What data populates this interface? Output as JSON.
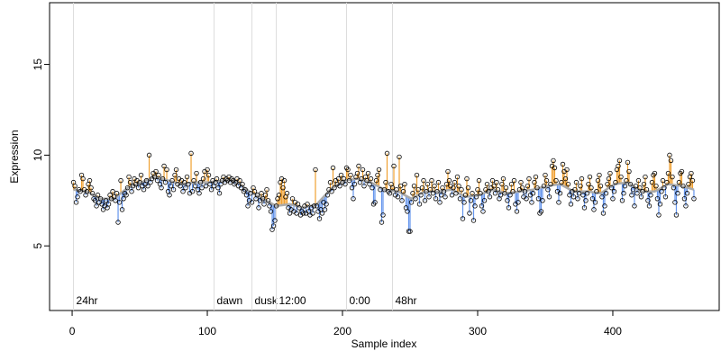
{
  "chart_data": {
    "type": "scatter",
    "x_label": "Sample index",
    "y_label": "Expression",
    "xlim": [
      -16.7,
      478.7
    ],
    "ylim": [
      1.44,
      18.4
    ],
    "xticks": [
      0,
      100,
      200,
      300,
      400
    ],
    "yticks": [
      5,
      10,
      15
    ],
    "above_color": "#f0a030",
    "below_color": "#6495ed",
    "point_color": "#000000",
    "event_line_color": "#dddddd",
    "event_label_color": "#aaaaaa",
    "events": [
      {
        "x": 1,
        "label": "24hr"
      },
      {
        "x": 105,
        "label": "dawn"
      },
      {
        "x": 133,
        "label": "dusk"
      },
      {
        "x": 151,
        "label": "12:00"
      },
      {
        "x": 203,
        "label": "0:00"
      },
      {
        "x": 237,
        "label": "48hr"
      }
    ],
    "series": [
      {
        "color": "#000000",
        "x": [
          1,
          2,
          3,
          4,
          5,
          6,
          7,
          8,
          9,
          10,
          11,
          12,
          13,
          14,
          15,
          16,
          17,
          18,
          19,
          20,
          21,
          22,
          23,
          24,
          25,
          26,
          27,
          28,
          29,
          30,
          31,
          32,
          33,
          34,
          35,
          36,
          37,
          38,
          39,
          40,
          41,
          42,
          43,
          44,
          45,
          46,
          47,
          48,
          49,
          50,
          51,
          52,
          53,
          54,
          55,
          56,
          57,
          58,
          59,
          60,
          61,
          62,
          63,
          64,
          65,
          66,
          67,
          68,
          69,
          70,
          71,
          72,
          73,
          74,
          75,
          76,
          77,
          78,
          79,
          80,
          81,
          82,
          83,
          84,
          85,
          86,
          87,
          88,
          89,
          90,
          91,
          92,
          93,
          94,
          95,
          96,
          97,
          98,
          99,
          100,
          101,
          102,
          103,
          104,
          105,
          106,
          107,
          108,
          109,
          110,
          111,
          112,
          113,
          114,
          115,
          116,
          117,
          118,
          119,
          120,
          121,
          122,
          123,
          124,
          125,
          126,
          127,
          128,
          129,
          130,
          131,
          132,
          133,
          134,
          135,
          136,
          137,
          138,
          139,
          140,
          141,
          142,
          143,
          144,
          145,
          146,
          147,
          148,
          149,
          150,
          151,
          152,
          153,
          154,
          155,
          156,
          157,
          158,
          159,
          160,
          161,
          162,
          163,
          164,
          165,
          166,
          167,
          168,
          169,
          170,
          171,
          172,
          173,
          174,
          175,
          176,
          177,
          178,
          179,
          180,
          181,
          182,
          183,
          184,
          185,
          186,
          187,
          188,
          189,
          190,
          191,
          192,
          193,
          194,
          195,
          196,
          197,
          198,
          199,
          200,
          201,
          202,
          203,
          204,
          205,
          206,
          207,
          208,
          209,
          210,
          211,
          212,
          213,
          214,
          215,
          216,
          217,
          218,
          219,
          220,
          221,
          222,
          223,
          224,
          225,
          226,
          227,
          228,
          229,
          230,
          231,
          232,
          233,
          234,
          235,
          236,
          237,
          238,
          239,
          240,
          241,
          242,
          243,
          244,
          245,
          246,
          247,
          248,
          249,
          250,
          251,
          252,
          253,
          254,
          255,
          256,
          257,
          258,
          259,
          260,
          261,
          262,
          263,
          264,
          265,
          266,
          267,
          268,
          269,
          270,
          271,
          272,
          273,
          274,
          275,
          276,
          277,
          278,
          279,
          280,
          281,
          282,
          283,
          284,
          285,
          286,
          287,
          288,
          289,
          290,
          291,
          292,
          293,
          294,
          295,
          296,
          297,
          298,
          299,
          300,
          301,
          302,
          303,
          304,
          305,
          306,
          307,
          308,
          309,
          310,
          311,
          312,
          313,
          314,
          315,
          316,
          317,
          318,
          319,
          320,
          321,
          322,
          323,
          324,
          325,
          326,
          327,
          328,
          329,
          330,
          331,
          332,
          333,
          334,
          335,
          336,
          337,
          338,
          339,
          340,
          341,
          342,
          343,
          344,
          345,
          346,
          347,
          348,
          349,
          350,
          351,
          352,
          353,
          354,
          355,
          356,
          357,
          358,
          359,
          360,
          361,
          362,
          363,
          364,
          365,
          366,
          367,
          368,
          369,
          370,
          371,
          372,
          373,
          374,
          375,
          376,
          377,
          378,
          379,
          380,
          381,
          382,
          383,
          384,
          385,
          386,
          387,
          388,
          389,
          390,
          391,
          392,
          393,
          394,
          395,
          396,
          397,
          398,
          399,
          400,
          401,
          402,
          403,
          404,
          405,
          406,
          407,
          408,
          409,
          410,
          411,
          412,
          413,
          414,
          415,
          416,
          417,
          418,
          419,
          420,
          421,
          422,
          423,
          424,
          425,
          426,
          427,
          428,
          429,
          430,
          431,
          432,
          433,
          434,
          435,
          436,
          437,
          438,
          439,
          440,
          441,
          442,
          443,
          444,
          445,
          446,
          447,
          448,
          449,
          450,
          451,
          452,
          453,
          454,
          455,
          456,
          457,
          458,
          459,
          460
        ],
        "values": [
          8.5,
          8.3,
          7.4,
          7.7,
          8.1,
          8.0,
          8.9,
          8.7,
          8.1,
          7.8,
          8.0,
          8.4,
          8.6,
          8.2,
          7.9,
          7.6,
          7.5,
          7.2,
          7.8,
          7.4,
          7.6,
          7.3,
          7.0,
          7.2,
          7.5,
          7.1,
          7.3,
          7.8,
          7.6,
          8.0,
          7.7,
          7.5,
          7.9,
          6.3,
          7.4,
          8.6,
          7.0,
          7.6,
          7.9,
          7.8,
          8.2,
          8.8,
          8.5,
          8.0,
          8.3,
          8.7,
          8.4,
          8.6,
          8.2,
          8.5,
          8.9,
          8.3,
          8.1,
          8.4,
          8.6,
          8.3,
          10.0,
          8.5,
          8.7,
          9.0,
          8.8,
          9.1,
          8.6,
          8.9,
          8.4,
          8.2,
          8.7,
          9.4,
          8.5,
          9.2,
          8.0,
          7.8,
          8.3,
          8.6,
          8.1,
          8.9,
          9.2,
          8.4,
          8.7,
          8.3,
          8.6,
          8.0,
          8.5,
          8.2,
          8.8,
          8.4,
          7.9,
          10.1,
          8.0,
          8.6,
          8.3,
          9.0,
          8.1,
          7.9,
          8.5,
          8.2,
          8.7,
          9.1,
          8.3,
          9.2,
          8.9,
          8.4,
          8.1,
          8.6,
          8.3,
          8.5,
          8.7,
          8.2,
          7.9,
          8.4,
          8.6,
          8.8,
          8.5,
          8.7,
          8.6,
          8.8,
          8.5,
          8.7,
          8.6,
          8.4,
          8.5,
          8.7,
          8.3,
          8.6,
          8.2,
          8.4,
          8.0,
          8.1,
          7.8,
          7.2,
          7.5,
          7.9,
          7.4,
          8.2,
          8.0,
          7.6,
          7.8,
          7.1,
          7.5,
          7.9,
          7.6,
          7.3,
          7.8,
          8.1,
          7.5,
          7.2,
          6.9,
          5.9,
          6.1,
          6.4,
          7.2,
          7.6,
          7.8,
          8.5,
          8.7,
          8.2,
          8.6,
          7.7,
          7.9,
          7.1,
          6.8,
          7.0,
          7.6,
          6.9,
          7.4,
          6.8,
          7.3,
          7.1,
          6.7,
          6.9,
          6.8,
          7.2,
          6.8,
          7.3,
          6.9,
          6.7,
          7.1,
          6.8,
          7.2,
          9.2,
          7.2,
          6.9,
          6.5,
          7.0,
          6.8,
          7.4,
          7.0,
          7.3,
          7.8,
          8.1,
          8.5,
          8.0,
          9.3,
          8.2,
          8.6,
          8.4,
          8.7,
          8.3,
          8.9,
          8.5,
          8.7,
          8.4,
          9.3,
          9.2,
          8.6,
          8.9,
          8.2,
          7.6,
          8.4,
          8.8,
          9.0,
          9.4,
          8.5,
          8.7,
          9.2,
          8.3,
          8.8,
          8.6,
          9.0,
          8.4,
          8.7,
          8.2,
          7.3,
          7.4,
          8.6,
          8.9,
          9.2,
          8.1,
          6.3,
          6.7,
          8.1,
          8.5,
          10.1,
          8.0,
          7.9,
          8.4,
          8.2,
          9.4,
          7.8,
          8.1,
          7.7,
          9.9,
          8.3,
          7.5,
          8.0,
          8.4,
          7.1,
          6.9,
          5.8,
          5.8,
          7.4,
          7.9,
          8.3,
          7.6,
          8.9,
          8.1,
          7.3,
          7.8,
          8.2,
          8.6,
          7.5,
          8.0,
          8.4,
          7.7,
          8.1,
          8.6,
          7.9,
          8.3,
          7.6,
          8.0,
          8.5,
          7.4,
          7.8,
          8.2,
          8.0,
          7.7,
          8.4,
          9.1,
          8.6,
          8.3,
          7.8,
          8.2,
          8.5,
          7.9,
          8.8,
          8.3,
          7.6,
          8.1,
          6.5,
          7.4,
          7.8,
          8.7,
          8.2,
          6.8,
          7.5,
          7.9,
          6.4,
          7.2,
          7.7,
          8.1,
          8.6,
          7.9,
          7.2,
          6.9,
          7.5,
          8.1,
          8.4,
          8.0,
          7.7,
          8.2,
          8.6,
          8.3,
          7.9,
          8.5,
          8.1,
          7.6,
          7.8,
          8.4,
          8.7,
          7.9,
          8.2,
          7.5,
          7.1,
          7.8,
          8.4,
          8.0,
          8.6,
          7.3,
          6.9,
          7.4,
          8.1,
          8.5,
          8.2,
          7.7,
          8.0,
          7.6,
          8.3,
          8.7,
          7.8,
          7.4,
          7.9,
          8.5,
          8.8,
          8.2,
          7.6,
          6.8,
          6.9,
          7.5,
          8.3,
          8.9,
          8.6,
          8.1,
          7.7,
          8.4,
          9.4,
          9.7,
          9.3,
          8.6,
          8.0,
          7.4,
          7.9,
          8.5,
          9.5,
          9.1,
          8.7,
          9.2,
          8.4,
          7.8,
          7.3,
          8.0,
          7.7,
          8.1,
          8.5,
          7.6,
          7.9,
          8.3,
          8.7,
          7.8,
          7.1,
          7.5,
          7.9,
          8.4,
          8.8,
          8.2,
          7.6,
          7.0,
          7.4,
          8.0,
          8.6,
          8.9,
          8.3,
          7.7,
          6.8,
          7.2,
          7.9,
          8.4,
          8.7,
          9.0,
          8.2,
          7.6,
          8.0,
          8.5,
          9.2,
          9.4,
          9.7,
          8.8,
          7.5,
          7.9,
          8.3,
          8.6,
          9.6,
          9.1,
          8.4,
          7.8,
          8.1,
          7.2,
          8.3,
          7.9,
          8.6,
          8.2,
          7.7,
          8.0,
          8.4,
          8.8,
          8.1,
          7.5,
          7.2,
          7.8,
          8.5,
          8.9,
          9.0,
          8.3,
          7.6,
          6.7,
          7.3,
          8.0,
          8.6,
          8.2,
          7.7,
          8.5,
          9.0,
          10.0,
          9.7,
          8.8,
          8.2,
          7.4,
          6.7,
          7.9,
          8.5,
          9.0,
          9.1,
          8.3,
          7.6,
          7.2,
          7.9,
          8.4,
          8.8,
          9.0,
          8.6,
          7.6
        ]
      },
      {
        "color": "#aaaaaa",
        "x": [
          1,
          11,
          21,
          31,
          41,
          51,
          61,
          71,
          81,
          91,
          101,
          111,
          121,
          131,
          141,
          151,
          161,
          171,
          181,
          191,
          201,
          211,
          221,
          231,
          241,
          251,
          261,
          271,
          281,
          291,
          301,
          311,
          321,
          331,
          341,
          351,
          361,
          371,
          381,
          391,
          401,
          411,
          421,
          431,
          441,
          451,
          460
        ],
        "values": [
          8.1,
          8.0,
          7.6,
          7.6,
          8.2,
          8.5,
          8.8,
          8.6,
          8.4,
          8.5,
          8.5,
          8.6,
          8.6,
          8.0,
          7.6,
          7.2,
          7.3,
          7.1,
          7.3,
          8.1,
          8.6,
          8.7,
          8.5,
          8.1,
          8.0,
          7.6,
          8.0,
          8.0,
          8.1,
          7.7,
          7.8,
          8.1,
          7.9,
          8.0,
          8.1,
          8.3,
          8.4,
          8.0,
          8.0,
          7.9,
          8.4,
          8.5,
          8.0,
          8.0,
          8.4,
          8.3,
          8.1
        ]
      }
    ]
  }
}
